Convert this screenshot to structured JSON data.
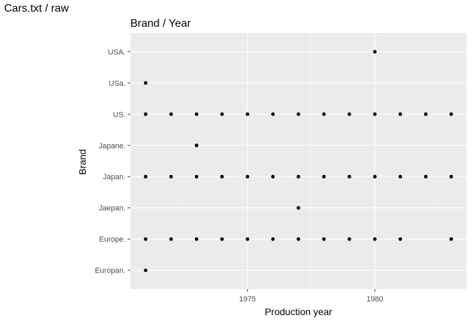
{
  "window": {
    "title": "Cars.txt / raw"
  },
  "colors": {
    "panel": "#ebebeb",
    "grid_major": "#ffffff",
    "point": "#000000",
    "tick_text": "#4d4d4d"
  },
  "chart_data": {
    "type": "scatter",
    "title": "Brand / Year",
    "xlabel": "Production year",
    "ylabel": "Brand",
    "xlim": [
      70.4,
      83.6
    ],
    "x_ticks": [
      75,
      80
    ],
    "x_tick_labels": [
      "1975",
      "1980"
    ],
    "categories": [
      "Europan.",
      "Europe.",
      "Jaepan.",
      "Japan.",
      "Japane.",
      "US.",
      "USa.",
      "USA."
    ],
    "points": [
      {
        "brand": "USA.",
        "year": 80
      },
      {
        "brand": "USa.",
        "year": 71
      },
      {
        "brand": "US.",
        "year": 71
      },
      {
        "brand": "US.",
        "year": 72
      },
      {
        "brand": "US.",
        "year": 73
      },
      {
        "brand": "US.",
        "year": 74
      },
      {
        "brand": "US.",
        "year": 75
      },
      {
        "brand": "US.",
        "year": 76
      },
      {
        "brand": "US.",
        "year": 77
      },
      {
        "brand": "US.",
        "year": 78
      },
      {
        "brand": "US.",
        "year": 79
      },
      {
        "brand": "US.",
        "year": 80
      },
      {
        "brand": "US.",
        "year": 81
      },
      {
        "brand": "US.",
        "year": 82
      },
      {
        "brand": "US.",
        "year": 83
      },
      {
        "brand": "Japane.",
        "year": 73
      },
      {
        "brand": "Japan.",
        "year": 71
      },
      {
        "brand": "Japan.",
        "year": 72
      },
      {
        "brand": "Japan.",
        "year": 73
      },
      {
        "brand": "Japan.",
        "year": 74
      },
      {
        "brand": "Japan.",
        "year": 75
      },
      {
        "brand": "Japan.",
        "year": 76
      },
      {
        "brand": "Japan.",
        "year": 77
      },
      {
        "brand": "Japan.",
        "year": 78
      },
      {
        "brand": "Japan.",
        "year": 79
      },
      {
        "brand": "Japan.",
        "year": 80
      },
      {
        "brand": "Japan.",
        "year": 81
      },
      {
        "brand": "Japan.",
        "year": 82
      },
      {
        "brand": "Japan.",
        "year": 83
      },
      {
        "brand": "Jaepan.",
        "year": 77
      },
      {
        "brand": "Europe.",
        "year": 71
      },
      {
        "brand": "Europe.",
        "year": 72
      },
      {
        "brand": "Europe.",
        "year": 73
      },
      {
        "brand": "Europe.",
        "year": 74
      },
      {
        "brand": "Europe.",
        "year": 75
      },
      {
        "brand": "Europe.",
        "year": 76
      },
      {
        "brand": "Europe.",
        "year": 77
      },
      {
        "brand": "Europe.",
        "year": 78
      },
      {
        "brand": "Europe.",
        "year": 79
      },
      {
        "brand": "Europe.",
        "year": 80
      },
      {
        "brand": "Europe.",
        "year": 81
      },
      {
        "brand": "Europe.",
        "year": 83
      },
      {
        "brand": "Europan.",
        "year": 71
      }
    ]
  }
}
